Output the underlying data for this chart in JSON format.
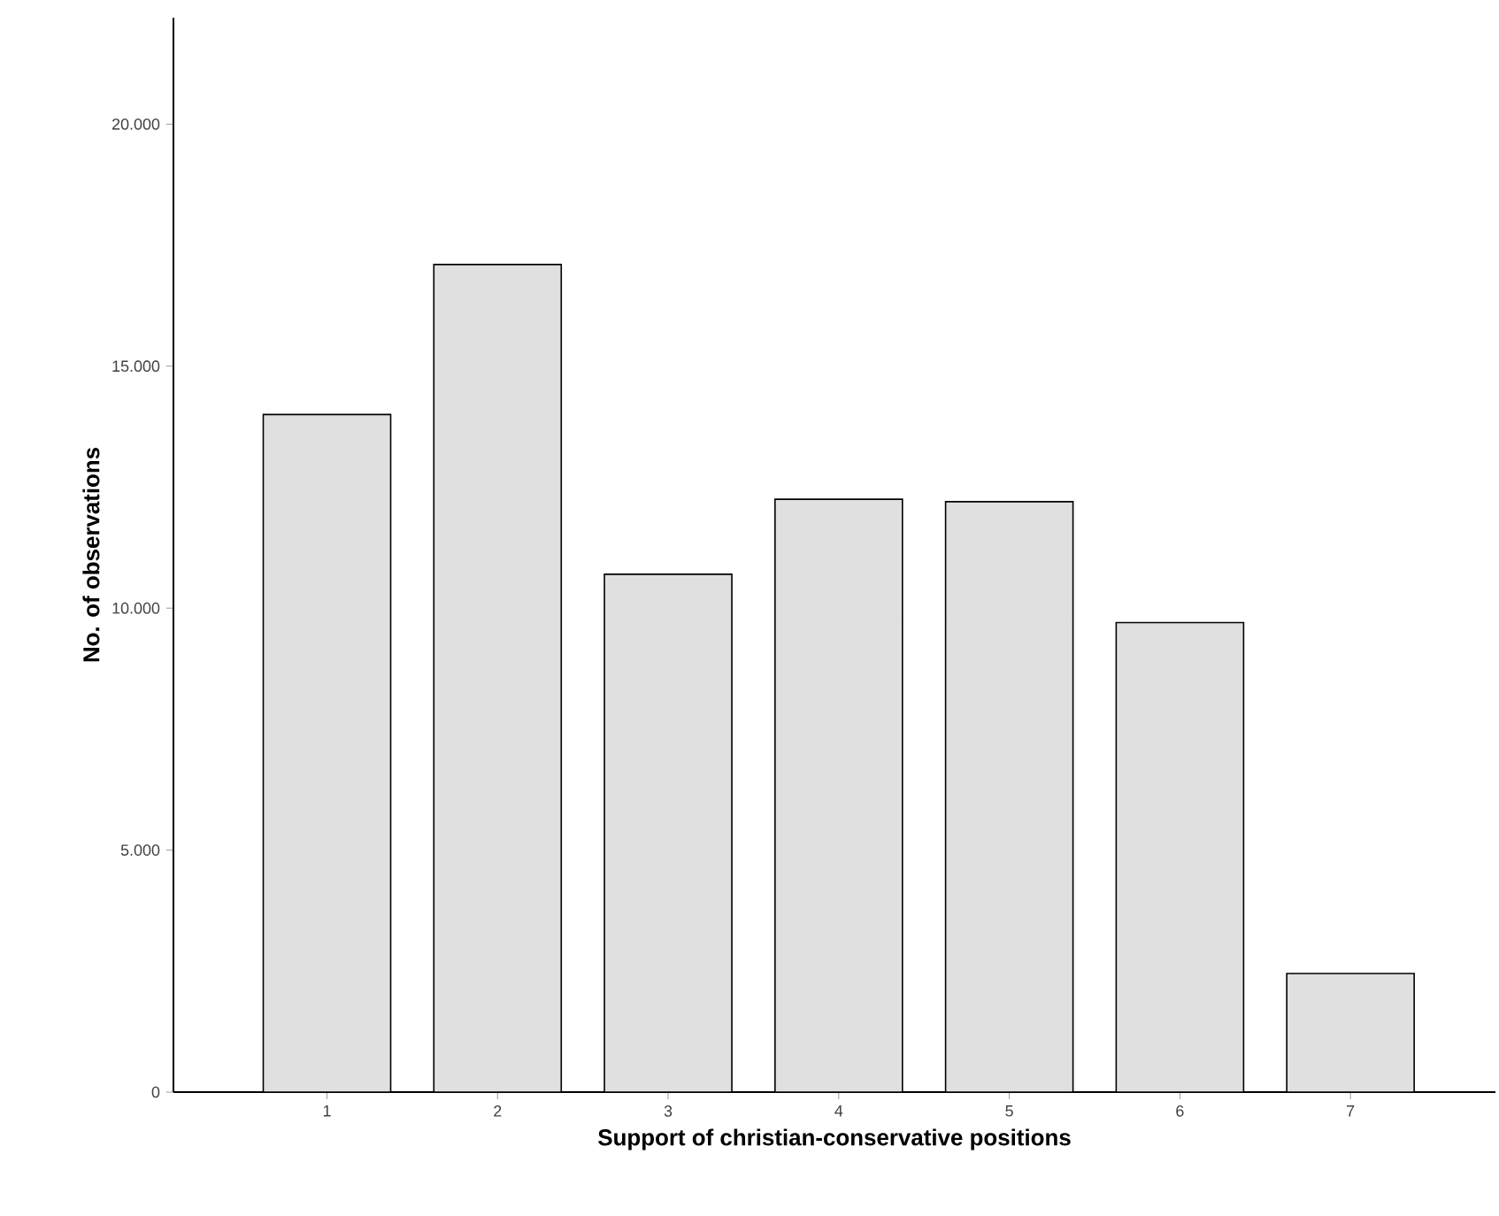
{
  "chart_data": {
    "type": "bar",
    "xlabel": "Support of christian-conservative positions",
    "ylabel": "No. of observations",
    "categories": [
      "1",
      "2",
      "3",
      "4",
      "5",
      "6",
      "7"
    ],
    "values": [
      14000,
      17100,
      10700,
      12250,
      12200,
      9700,
      2450
    ],
    "color": "#e0e0e0",
    "ylim": [
      0,
      22200
    ],
    "yticks": [
      0,
      {
        "value": 5000,
        "label": "5.000"
      },
      {
        "value": 10000,
        "label": "10.000"
      },
      {
        "value": 15000,
        "label": "15.000"
      },
      {
        "value": 20000,
        "label": "20.000"
      }
    ]
  }
}
